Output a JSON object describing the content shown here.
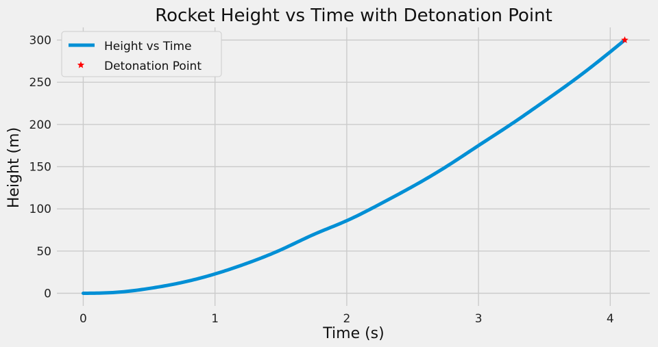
{
  "chart_data": {
    "type": "line",
    "title": "Rocket Height vs Time with Detonation Point",
    "xlabel": "Time (s)",
    "ylabel": "Height (m)",
    "xlim": [
      -0.2,
      4.3
    ],
    "ylim": [
      -15,
      315
    ],
    "x_ticks": [
      0,
      1,
      2,
      3,
      4
    ],
    "y_ticks": [
      0,
      50,
      100,
      150,
      200,
      250,
      300
    ],
    "grid": true,
    "legend_position": "upper-left",
    "colors": {
      "line": "#008fd5",
      "marker": "#ff0000",
      "grid": "#cbcbcb",
      "background": "#f0f0f0"
    },
    "series": [
      {
        "name": "Height vs Time",
        "x": [
          0,
          0.25,
          0.5,
          0.75,
          1.0,
          1.25,
          1.5,
          1.75,
          2.0,
          2.25,
          2.5,
          2.75,
          3.0,
          3.25,
          3.5,
          3.75,
          4.0,
          4.11
        ],
        "y": [
          0,
          1.1,
          5.7,
          12.8,
          22.9,
          35.9,
          51.5,
          69.7,
          86,
          105.5,
          126.5,
          149.5,
          175,
          200.5,
          227.5,
          255.5,
          286,
          300
        ]
      },
      {
        "name": "Detonation Point",
        "x": [
          4.11
        ],
        "y": [
          300
        ]
      }
    ]
  }
}
